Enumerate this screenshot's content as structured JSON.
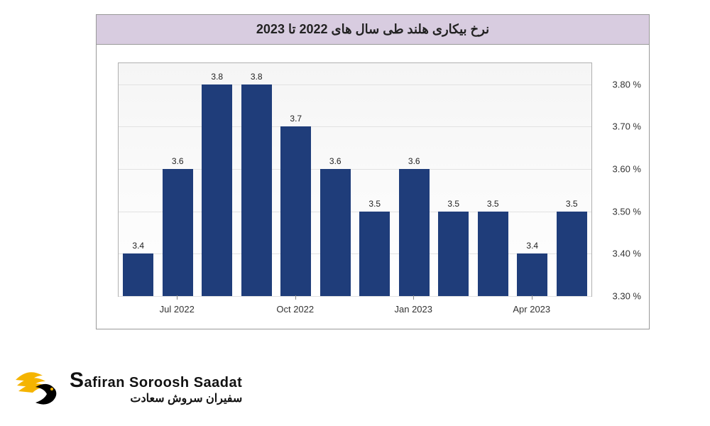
{
  "chart": {
    "type": "bar",
    "title": "نرخ بیکاری هلند طی سال های 2022 تا 2023",
    "title_bg": "#d8cce0",
    "title_color": "#222222",
    "title_fontsize": 18,
    "border_color": "#999999",
    "plot_bg_top": "#f5f5f5",
    "plot_bg_bottom": "#ffffff",
    "grid_color": "#e2e2e2",
    "bar_color": "#1f3d7a",
    "label_color": "#333333",
    "label_fontsize": 13,
    "bar_label_fontsize": 12,
    "ylim": [
      3.3,
      3.85
    ],
    "yticks": [
      3.3,
      3.4,
      3.5,
      3.6,
      3.7,
      3.8
    ],
    "ytick_labels": [
      "3.30 %",
      "3.40 %",
      "3.50 %",
      "3.60 %",
      "3.70 %",
      "3.80 %"
    ],
    "values": [
      3.4,
      3.6,
      3.8,
      3.8,
      3.7,
      3.6,
      3.5,
      3.6,
      3.5,
      3.5,
      3.4,
      3.5
    ],
    "bar_labels": [
      "3.4",
      "3.6",
      "3.8",
      "3.8",
      "3.7",
      "3.6",
      "3.5",
      "3.6",
      "3.5",
      "3.5",
      "3.4",
      "3.5"
    ],
    "x_tick_positions": [
      1,
      4,
      7,
      10
    ],
    "x_tick_labels": [
      "Jul 2022",
      "Oct 2022",
      "Jan 2023",
      "Apr 2023"
    ],
    "bar_width_ratio": 0.78
  },
  "watermark": {
    "stroke": "#999999",
    "opacity": 0.12
  },
  "logo": {
    "english": "Safiran Soroosh Saadat",
    "farsi": "سفیران سروش سعادت",
    "wing_color": "#f5b400",
    "body_color": "#000000"
  }
}
